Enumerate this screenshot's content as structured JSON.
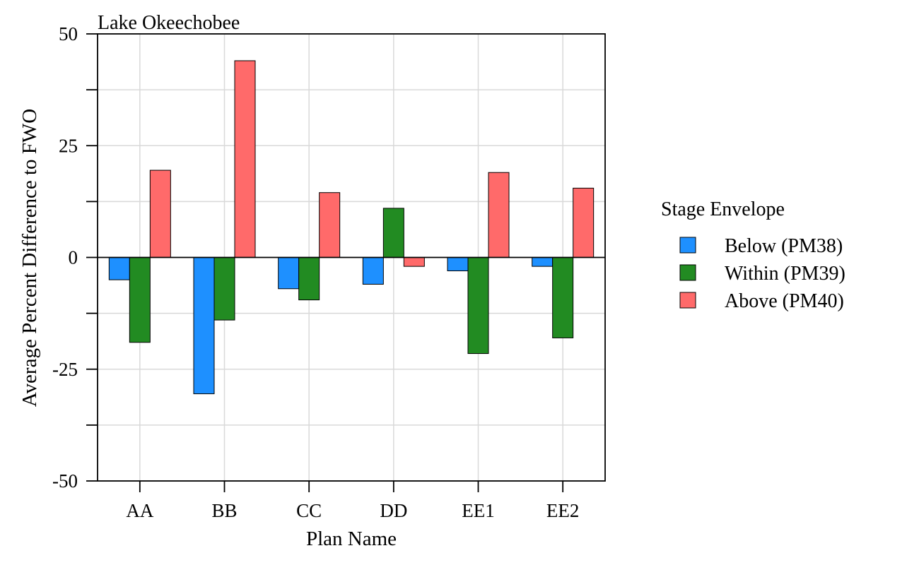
{
  "chart_data": {
    "type": "bar",
    "title": "Lake Okeechobee",
    "xlabel": "Plan Name",
    "ylabel": "Average Percent Difference to FWO",
    "categories": [
      "AA",
      "BB",
      "CC",
      "DD",
      "EE1",
      "EE2"
    ],
    "ylim": [
      -50,
      50
    ],
    "yticks": [
      -50,
      -25,
      0,
      25,
      50
    ],
    "grid": true,
    "legend": {
      "title": "Stage Envelope",
      "placement": "right"
    },
    "series": [
      {
        "name": "Below (PM38)",
        "color": "#1E90FF",
        "values": [
          -5,
          -30.5,
          -7,
          -6,
          -3,
          -2
        ]
      },
      {
        "name": "Within (PM39)",
        "color": "#228B22",
        "values": [
          -19,
          -14,
          -9.5,
          11,
          -21.5,
          -18
        ]
      },
      {
        "name": "Above (PM40)",
        "color": "#FF6A6A",
        "values": [
          19.5,
          44,
          14.5,
          -2,
          19,
          15.5
        ]
      }
    ]
  }
}
